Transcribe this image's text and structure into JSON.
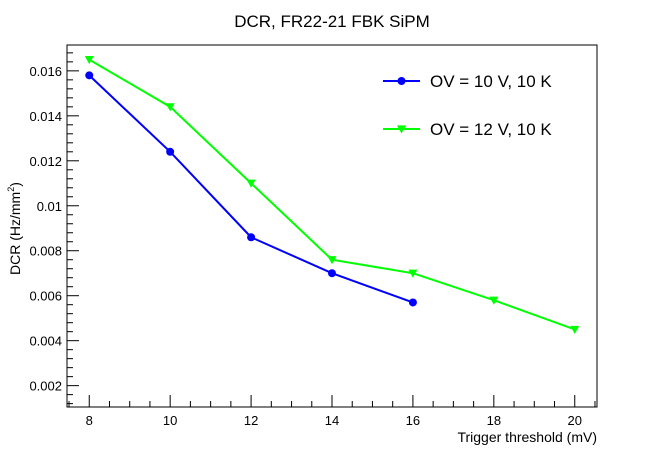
{
  "chart_data": {
    "type": "line",
    "title": "DCR, FR22-21 FBK SiPM",
    "xlabel": "Trigger threshold (mV)",
    "ylabel_main": "DCR (Hz/mm",
    "ylabel_sup": "2",
    "ylabel_close": ")",
    "xlim": [
      7.45,
      20.55
    ],
    "ylim": [
      0.00105,
      0.01715
    ],
    "x_ticks": [
      8,
      10,
      12,
      14,
      16,
      18,
      20
    ],
    "x_tick_labels": [
      "8",
      "10",
      "12",
      "14",
      "16",
      "18",
      "20"
    ],
    "y_ticks": [
      0.002,
      0.004,
      0.006,
      0.008,
      0.01,
      0.012,
      0.014,
      0.016
    ],
    "y_tick_labels": [
      "0.002",
      "0.004",
      "0.006",
      "0.008",
      "0.01",
      "0.012",
      "0.014",
      "0.016"
    ],
    "legend_position": "top-right",
    "series": [
      {
        "name": "OV = 10 V, 10 K",
        "color": "#0000ff",
        "marker": "circle",
        "x": [
          8,
          10,
          12,
          14,
          16
        ],
        "values": [
          0.0158,
          0.0124,
          0.0086,
          0.007,
          0.0057
        ]
      },
      {
        "name": "OV = 12 V, 10 K",
        "color": "#00ff00",
        "marker": "triangle-down",
        "x": [
          8,
          10,
          12,
          14,
          16,
          18,
          20
        ],
        "values": [
          0.0165,
          0.0144,
          0.011,
          0.0076,
          0.007,
          0.0058,
          0.0045
        ]
      }
    ]
  }
}
